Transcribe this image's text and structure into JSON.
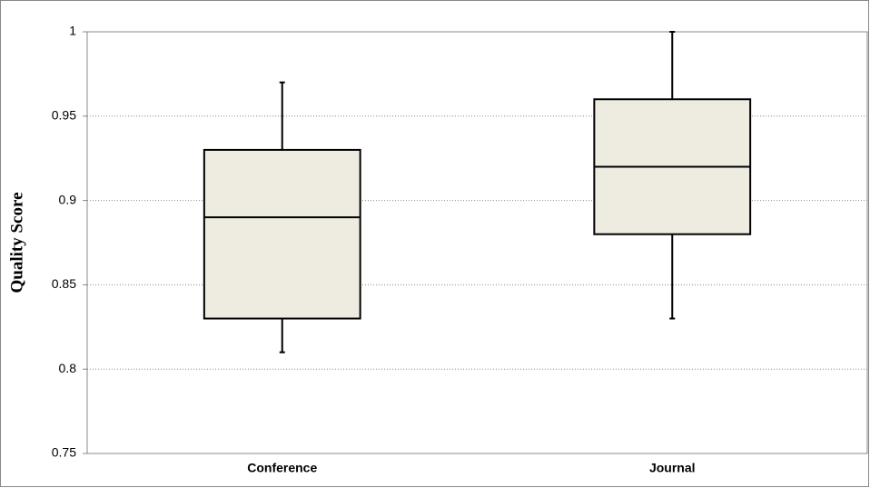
{
  "chart_data": {
    "type": "box",
    "y_label": "Quality Score",
    "categories": [
      "Conference",
      "Journal"
    ],
    "boxes": [
      {
        "min": 0.81,
        "q1": 0.83,
        "median": 0.89,
        "q3": 0.93,
        "max": 0.97
      },
      {
        "min": 0.83,
        "q1": 0.88,
        "median": 0.92,
        "q3": 0.96,
        "max": 1
      }
    ],
    "color": "#eeece1",
    "ylim": [
      0.75,
      1
    ],
    "yticks": [
      0.75,
      0.8,
      0.85,
      0.9,
      0.95,
      1
    ],
    "grid": true
  }
}
